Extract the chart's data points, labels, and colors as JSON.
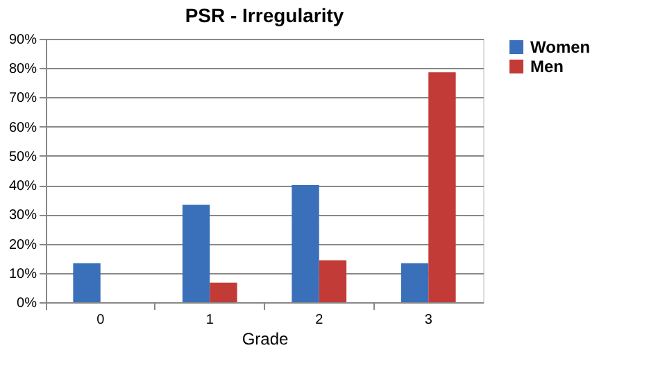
{
  "chart_data": {
    "type": "bar",
    "title": "PSR - Irregularity",
    "xlabel": "Grade",
    "categories": [
      "0",
      "1",
      "2",
      "3"
    ],
    "series": [
      {
        "name": "Women",
        "color": "#3a6fba",
        "values": [
          13.3,
          33.3,
          40,
          13.3
        ]
      },
      {
        "name": "Men",
        "color": "#c23b37",
        "values": [
          0,
          6.7,
          14.3,
          78.6
        ]
      }
    ],
    "ylim": [
      0,
      90
    ],
    "yticks": [
      {
        "value": 0,
        "label": "0%"
      },
      {
        "value": 10,
        "label": "10%"
      },
      {
        "value": 20,
        "label": "20%"
      },
      {
        "value": 30,
        "label": "30%"
      },
      {
        "value": 40,
        "label": "40%"
      },
      {
        "value": 50,
        "label": "50%"
      },
      {
        "value": 60,
        "label": "60%"
      },
      {
        "value": 70,
        "label": "70%"
      },
      {
        "value": 80,
        "label": "80%"
      },
      {
        "value": 90,
        "label": "90%"
      }
    ],
    "grid": "y",
    "legend": "right"
  }
}
